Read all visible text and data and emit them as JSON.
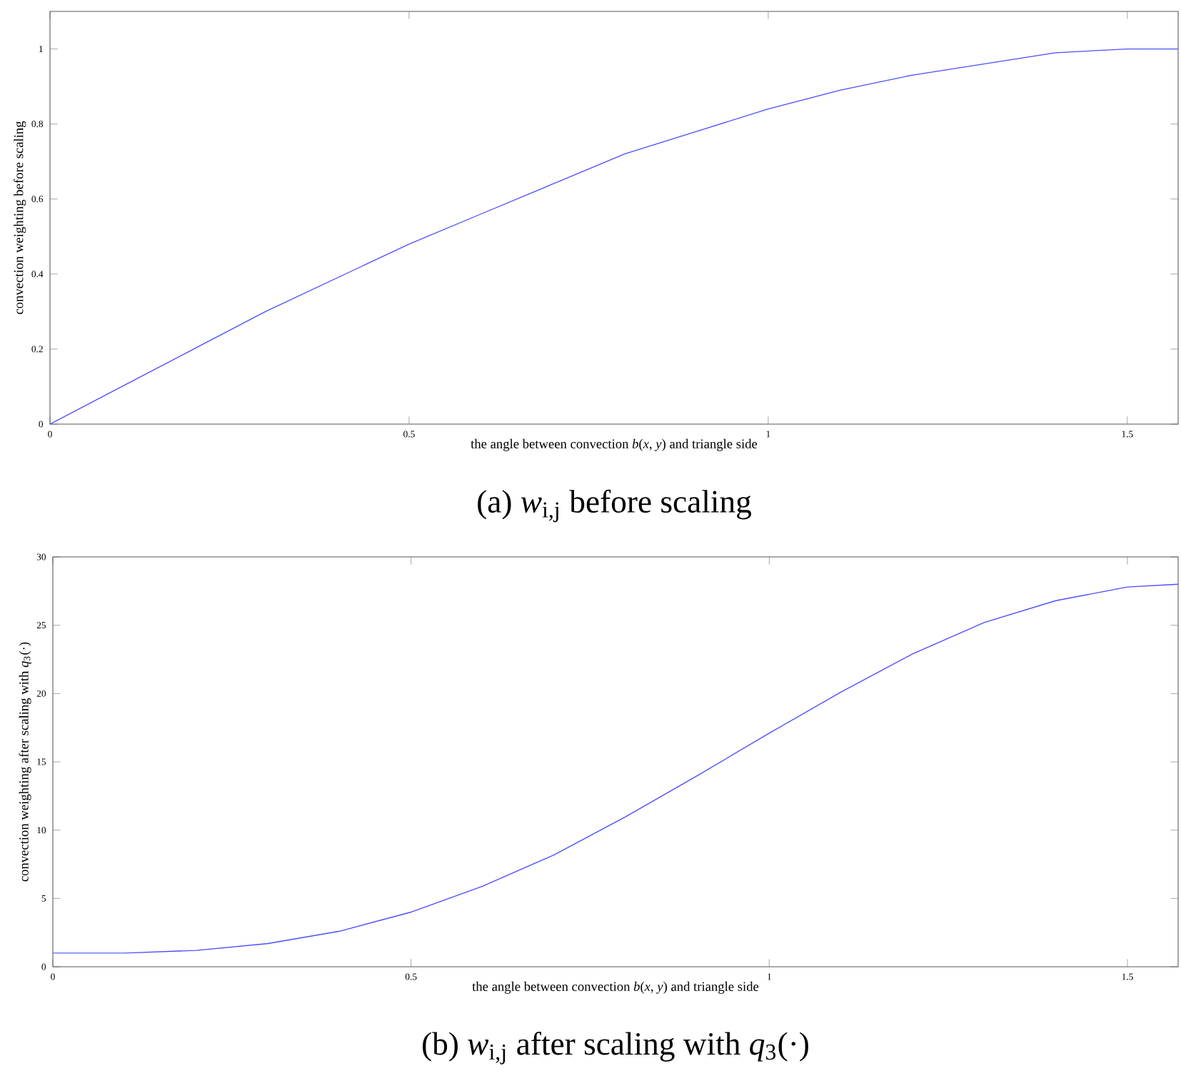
{
  "chart_data": [
    {
      "type": "line",
      "title": "(a) *w*$_{i,j}$ before scaling",
      "xlabel": "the angle between convection *b*(*x*, *y*) and triangle side",
      "ylabel": "convection weighting before scaling",
      "x": [
        0,
        0.1,
        0.2,
        0.3,
        0.4,
        0.5,
        0.6,
        0.7,
        0.8,
        0.9,
        1.0,
        1.1,
        1.2,
        1.3,
        1.4,
        1.5,
        1.5708
      ],
      "series": [
        {
          "color": "#4d4dff",
          "values": [
            0,
            0.1,
            0.2,
            0.3,
            0.39,
            0.48,
            0.56,
            0.64,
            0.72,
            0.78,
            0.84,
            0.89,
            0.93,
            0.96,
            0.99,
            1.0,
            1.0
          ]
        }
      ],
      "xlim": [
        0,
        1.5708
      ],
      "ylim": [
        0,
        1.1
      ],
      "xticks": [
        0,
        0.5,
        1,
        1.5
      ],
      "yticks": [
        0,
        0.2,
        0.4,
        0.6,
        0.8,
        1
      ]
    },
    {
      "type": "line",
      "title": "(b) *w*$_{i,j}$ after scaling with *q*$_{3}$(·)",
      "xlabel": "the angle between convection *b*(*x*, *y*) and triangle side",
      "ylabel": "convection weighting after scaling with *q*$_{3}$(·)",
      "x": [
        0,
        0.1,
        0.2,
        0.3,
        0.4,
        0.5,
        0.6,
        0.7,
        0.8,
        0.9,
        1.0,
        1.1,
        1.2,
        1.3,
        1.4,
        1.5,
        1.5708
      ],
      "series": [
        {
          "color": "#4d4dff",
          "values": [
            1,
            1.0,
            1.2,
            1.7,
            2.6,
            4.0,
            5.9,
            8.2,
            11.0,
            14.0,
            17.1,
            20.1,
            22.9,
            25.2,
            26.8,
            27.8,
            28
          ]
        }
      ],
      "xlim": [
        0,
        1.5708
      ],
      "ylim": [
        0,
        30
      ],
      "xticks": [
        0,
        0.5,
        1,
        1.5
      ],
      "yticks": [
        0,
        5,
        10,
        15,
        20,
        25,
        30
      ]
    }
  ]
}
